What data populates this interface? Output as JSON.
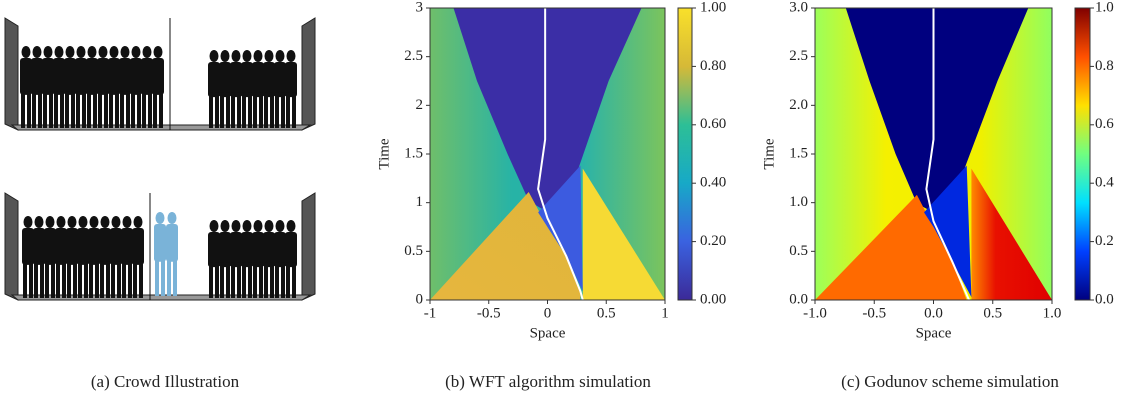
{
  "captions": [
    "(a) Crowd Illustration",
    "(b) WFT algorithm simulation",
    "(c) Godunov scheme simulation"
  ],
  "chart_data": [
    {
      "type": "heatmap",
      "xlabel": "Space",
      "ylabel": "Time",
      "xlim": [
        -1,
        1
      ],
      "ylim": [
        0,
        3
      ],
      "xticks": [
        -1,
        -0.5,
        0,
        0.5,
        1
      ],
      "yticks": [
        0,
        0.5,
        1,
        1.5,
        2,
        2.5,
        3
      ],
      "colorbar_lim": [
        0,
        1
      ],
      "colorbar_ticks": [
        {
          "value": 0,
          "label": "0.00"
        },
        {
          "value": 0.2,
          "label": "0.20"
        },
        {
          "value": 0.4,
          "label": "0.40"
        },
        {
          "value": 0.6,
          "label": "0.60"
        },
        {
          "value": 0.8,
          "label": "0.80"
        },
        {
          "value": 1,
          "label": "1.00"
        }
      ],
      "colormap": [
        "#3b2a98",
        "#3a62e0",
        "#17a9c7",
        "#2dbf96",
        "#d6b937",
        "#f9e02a"
      ]
    },
    {
      "type": "heatmap",
      "xlabel": "Space",
      "ylabel": "Time",
      "xlim": [
        -1,
        1
      ],
      "ylim": [
        0,
        3
      ],
      "xticks": [
        {
          "value": -1,
          "label": "-1.0"
        },
        -0.5,
        {
          "value": 0,
          "label": "0.0"
        },
        0.5,
        {
          "value": 1,
          "label": "1.0"
        }
      ],
      "yticks": [
        {
          "value": 0,
          "label": "0.0"
        },
        0.5,
        {
          "value": 1,
          "label": "1.0"
        },
        1.5,
        {
          "value": 2,
          "label": "2.0"
        },
        2.5,
        {
          "value": 3,
          "label": "3.0"
        }
      ],
      "colorbar_lim": [
        0,
        1
      ],
      "colorbar_ticks": [
        {
          "value": 0,
          "label": "0.0"
        },
        0.2,
        0.4,
        0.6,
        0.8,
        {
          "value": 1,
          "label": "1.0"
        }
      ],
      "colormap": [
        "#00007f",
        "#0040ff",
        "#00e0ff",
        "#70ff80",
        "#ffe000",
        "#ff5000",
        "#800000"
      ]
    }
  ]
}
